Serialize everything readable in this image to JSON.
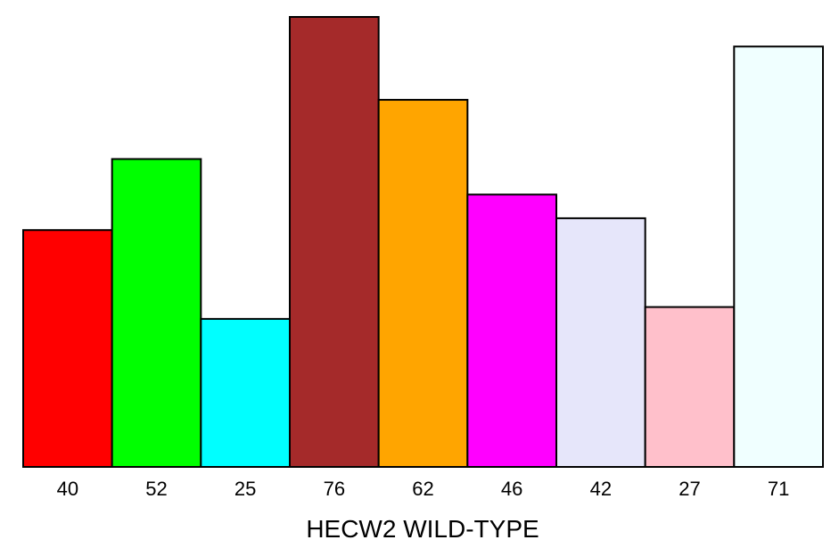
{
  "chart_data": {
    "type": "bar",
    "categories": [
      "40",
      "52",
      "25",
      "76",
      "62",
      "46",
      "42",
      "27",
      "71"
    ],
    "values": [
      40,
      52,
      25,
      76,
      62,
      46,
      42,
      27,
      71
    ],
    "colors": [
      "#ff0000",
      "#00ff00",
      "#00ffff",
      "#a52a2a",
      "#ffa500",
      "#ff00ff",
      "#e6e6fa",
      "#ffc0cb",
      "#f0ffff"
    ],
    "title": "",
    "xlabel": "HECW2 WILD-TYPE",
    "ylabel": "",
    "ylim": [
      0,
      76
    ],
    "grid": false,
    "legend": "none"
  }
}
